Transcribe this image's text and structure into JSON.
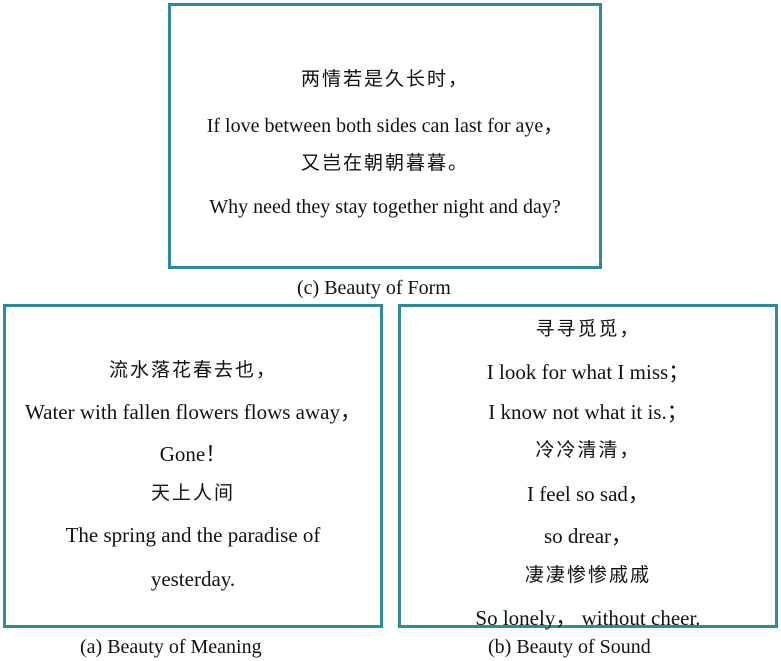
{
  "panel_c": {
    "lines": [
      "两情若是久长时，",
      "If love between both sides can last for aye，",
      "又岂在朝朝暮暮。",
      "Why need they stay together night and day?"
    ],
    "caption": "(c) Beauty of Form"
  },
  "panel_a": {
    "lines": [
      "流水落花春去也，",
      "Water with fallen flowers flows away，",
      "Gone！",
      "天上人间",
      "The spring and the paradise of",
      "yesterday."
    ],
    "caption": "(a) Beauty of Meaning"
  },
  "panel_b": {
    "lines": [
      "寻寻觅觅，",
      "I look for what I miss；",
      "I know not what it is.；",
      "冷冷清清，",
      "I feel so sad，",
      "so drear，",
      "凄凄惨惨戚戚",
      "So lonely， without cheer."
    ],
    "caption": "(b) Beauty of Sound"
  },
  "colors": {
    "border": "#2c8c99",
    "text": "#111111",
    "background": "#ffffff"
  }
}
